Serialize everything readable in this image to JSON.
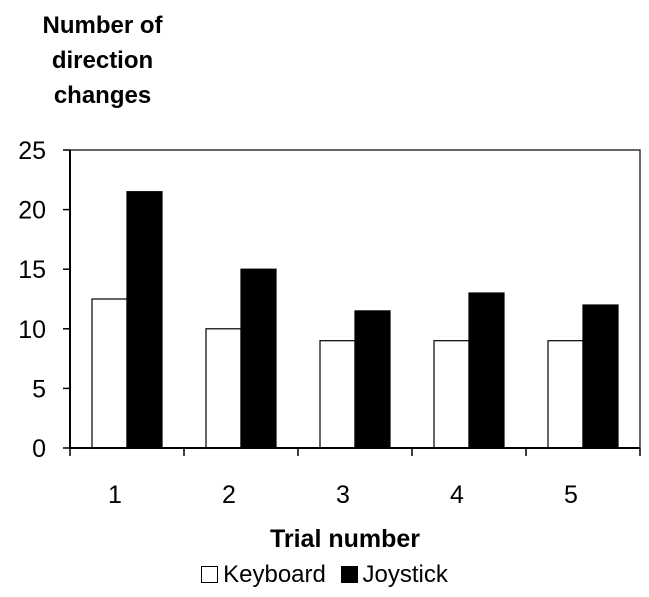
{
  "chart_data": {
    "type": "bar",
    "title": "",
    "ylabel_lines": [
      "Number of",
      "direction",
      "changes"
    ],
    "xlabel": "Trial number",
    "categories": [
      "1",
      "2",
      "3",
      "4",
      "5"
    ],
    "yticks": [
      "0",
      "5",
      "10",
      "15",
      "20",
      "25"
    ],
    "ylim": [
      0,
      25
    ],
    "series": [
      {
        "name": "Keyboard",
        "values": [
          12.5,
          10,
          9,
          9,
          9
        ],
        "color": "#ffffff"
      },
      {
        "name": "Joystick",
        "values": [
          21.5,
          15,
          11.5,
          13,
          12
        ],
        "color": "#000000"
      }
    ],
    "grid": false,
    "legend_position": "bottom"
  }
}
